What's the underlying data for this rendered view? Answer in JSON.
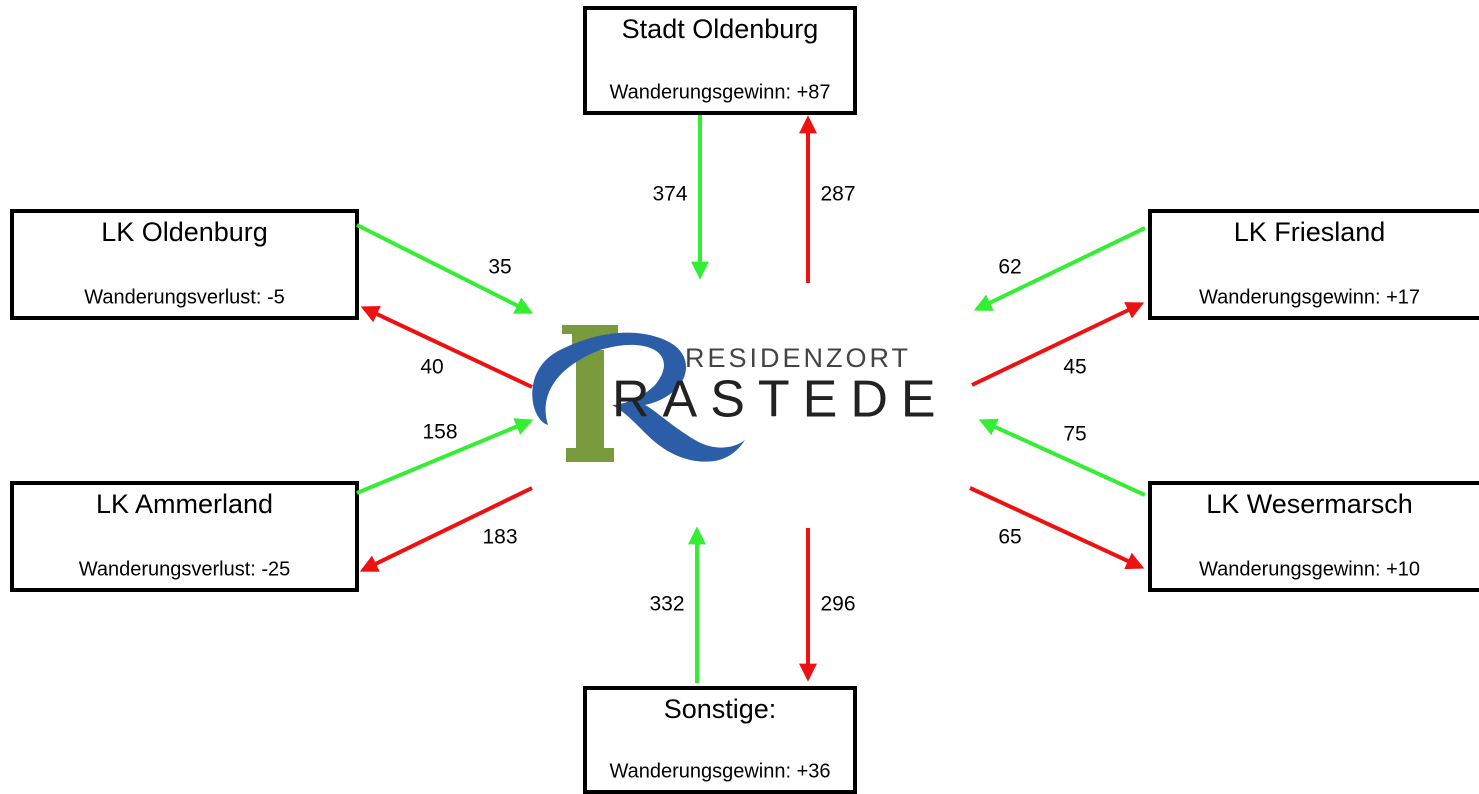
{
  "logo": {
    "tagline": "RESIDENZORT",
    "name": "RASTEDE"
  },
  "nodes": [
    {
      "name": "Stadt Oldenburg",
      "balance": "Wanderungsgewinn: +87",
      "inflow": 374,
      "outflow": 287
    },
    {
      "name": "LK Oldenburg",
      "balance": "Wanderungsverlust: -5",
      "inflow": 35,
      "outflow": 40
    },
    {
      "name": "LK Ammerland",
      "balance": "Wanderungsverlust: -25",
      "inflow": 158,
      "outflow": 183
    },
    {
      "name": "LK Friesland",
      "balance": "Wanderungsgewinn: +17",
      "inflow": 62,
      "outflow": 45
    },
    {
      "name": "LK Wesermarsch",
      "balance": "Wanderungsgewinn: +10",
      "inflow": 75,
      "outflow": 65
    },
    {
      "name": "Sonstige:",
      "balance": "Wanderungsgewinn: +36",
      "inflow": 332,
      "outflow": 296
    }
  ]
}
